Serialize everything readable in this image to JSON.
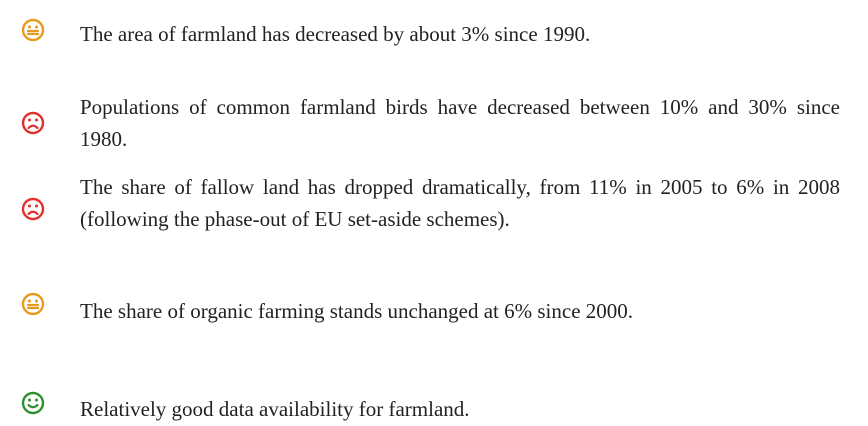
{
  "items": [
    {
      "text": "The area of farmland has decreased by about 3% since 1990."
    },
    {
      "text": "Populations of common farmland birds have decreased between 10% and 30% since 1980."
    },
    {
      "text": "The share of fallow land has dropped dramatically, from 11% in 2005 to 6% in 2008 (following the phase-out of EU set-aside schemes)."
    },
    {
      "text": "The share of organic farming stands unchanged at 6% since 2000."
    },
    {
      "text": "Relatively good data availability for farmland."
    }
  ]
}
